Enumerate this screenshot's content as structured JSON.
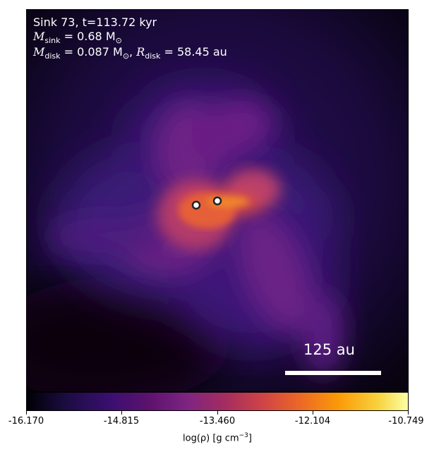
{
  "annotation": {
    "line1": "Sink 73, t=113.72 kyr",
    "msink_label": "M",
    "msink_sub": "sink",
    "msink_value": " = 0.68 M",
    "msink_unit_sub": "⊙",
    "mdisk_label": "M",
    "mdisk_sub": "disk",
    "mdisk_value": " = 0.087 M",
    "mdisk_unit_sub": "⊙",
    "rdisk_sep": ", ",
    "rdisk_label": "R",
    "rdisk_sub": "disk",
    "rdisk_value": " = 58.45 au"
  },
  "scale_bar": {
    "label": "125 au"
  },
  "colorbar": {
    "ticks": [
      "-16.170",
      "-14.815",
      "-13.460",
      "-12.104",
      "-10.749"
    ],
    "label_prefix": "log(ρ) [g cm",
    "label_exp": "−3",
    "label_suffix": "]"
  },
  "colors": {
    "background": "#0d0620",
    "outer_haze": "#3b0f70",
    "mid": "#7e2482",
    "inner": "#cf4446",
    "core": "#ed6925",
    "peak": "#fb9b06"
  },
  "sinks": {
    "count": 2,
    "icon": "sink-particle-icon"
  }
}
